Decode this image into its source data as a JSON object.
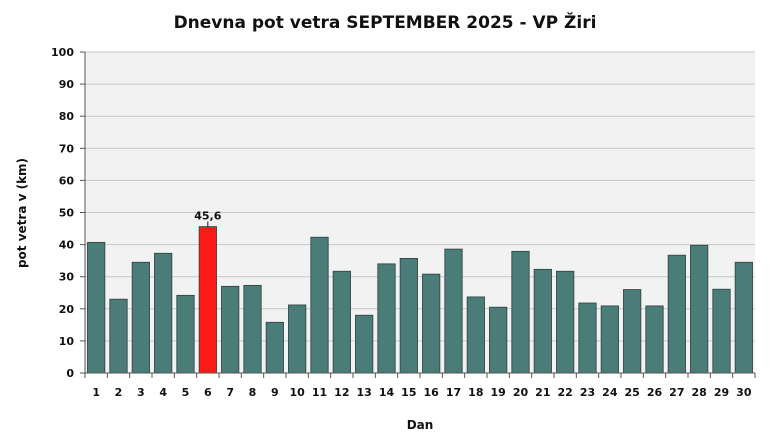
{
  "chart_data": {
    "type": "bar",
    "title": "Dnevna pot vetra SEPTEMBER 2025 - VP Žiri",
    "xlabel": "Dan",
    "ylabel": "pot vetra  v (km)",
    "ylim": [
      0,
      100
    ],
    "yticks": [
      "0",
      "10",
      "20",
      "30",
      "40",
      "50",
      "60",
      "70",
      "80",
      "90",
      "100"
    ],
    "grid": true,
    "categories": [
      "1",
      "2",
      "3",
      "4",
      "5",
      "6",
      "7",
      "8",
      "9",
      "10",
      "11",
      "12",
      "13",
      "14",
      "15",
      "16",
      "17",
      "18",
      "19",
      "20",
      "21",
      "22",
      "23",
      "24",
      "25",
      "26",
      "27",
      "28",
      "29",
      "30"
    ],
    "values": [
      40.7,
      23.0,
      34.5,
      37.3,
      24.2,
      45.6,
      27.0,
      27.3,
      15.8,
      21.2,
      42.3,
      31.7,
      18.0,
      34.0,
      35.7,
      30.8,
      38.6,
      23.7,
      20.5,
      37.9,
      32.3,
      31.7,
      21.8,
      20.9,
      26.0,
      20.9,
      36.7,
      39.8,
      26.1,
      34.5
    ],
    "highlight_index": 5,
    "highlight_label": "45,6",
    "colors": {
      "bar": "#4a7c78",
      "highlight": "#ff1a1a",
      "plot_bg": "#f2f2f2",
      "grid": "#c8c8c8"
    }
  }
}
